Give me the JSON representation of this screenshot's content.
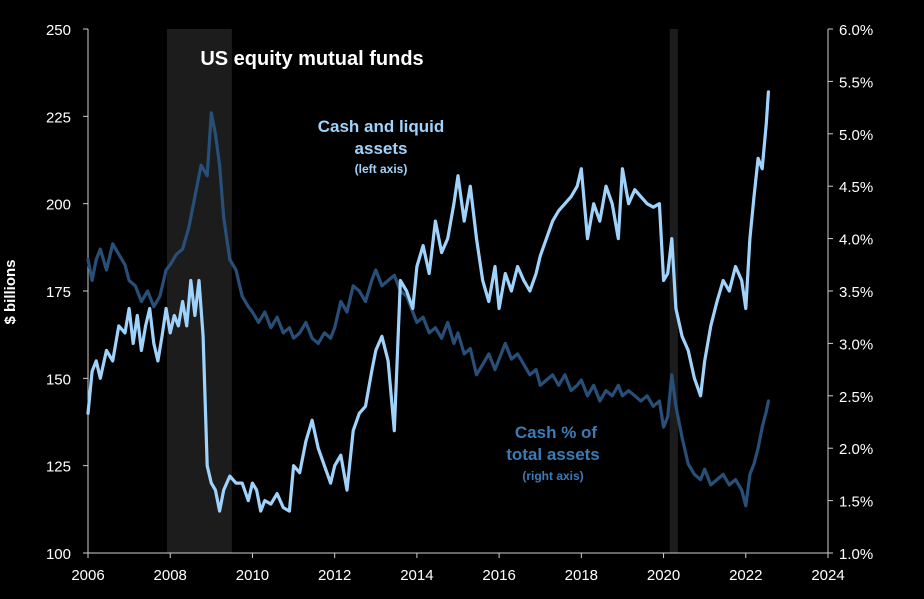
{
  "chart_data": {
    "type": "line",
    "title": "US equity mutual funds",
    "ylabel": "$ billions",
    "y2label": "",
    "xlim": [
      2006,
      2024
    ],
    "ylim": [
      100,
      250
    ],
    "y2lim": [
      1.0,
      6.0
    ],
    "x_ticks": [
      "2006",
      "2008",
      "2010",
      "2012",
      "2014",
      "2016",
      "2018",
      "2020",
      "2022",
      "2024"
    ],
    "y_ticks": [
      "100",
      "125",
      "150",
      "175",
      "200",
      "225",
      "250"
    ],
    "y2_ticks": [
      "1.0%",
      "1.5%",
      "2.0%",
      "2.5%",
      "3.0%",
      "3.5%",
      "4.0%",
      "4.5%",
      "5.0%",
      "5.5%",
      "6.0%"
    ],
    "recessions": [
      {
        "start": 2007.92,
        "end": 2009.5
      },
      {
        "start": 2020.15,
        "end": 2020.35
      }
    ],
    "annotations": {
      "cash_liquid": {
        "lines": [
          "Cash and liquid",
          "assets"
        ],
        "sub": "(left axis)",
        "color": "#9fd3fb"
      },
      "cash_pct": {
        "lines": [
          "Cash % of",
          "total assets"
        ],
        "sub": "(right axis)",
        "color": "#3b7bb8"
      }
    },
    "series": [
      {
        "name": "Cash and liquid assets",
        "axis": "left",
        "color": "#9fd3fb",
        "x": [
          2006.0,
          2006.1,
          2006.2,
          2006.3,
          2006.45,
          2006.6,
          2006.75,
          2006.9,
          2007.0,
          2007.1,
          2007.2,
          2007.3,
          2007.4,
          2007.5,
          2007.6,
          2007.7,
          2007.8,
          2007.9,
          2008.0,
          2008.1,
          2008.2,
          2008.3,
          2008.4,
          2008.5,
          2008.6,
          2008.7,
          2008.8,
          2008.9,
          2009.0,
          2009.1,
          2009.2,
          2009.3,
          2009.45,
          2009.6,
          2009.75,
          2009.9,
          2010.0,
          2010.1,
          2010.2,
          2010.3,
          2010.45,
          2010.6,
          2010.75,
          2010.9,
          2011.0,
          2011.15,
          2011.3,
          2011.45,
          2011.6,
          2011.75,
          2011.9,
          2012.0,
          2012.15,
          2012.3,
          2012.45,
          2012.6,
          2012.75,
          2012.9,
          2013.0,
          2013.15,
          2013.3,
          2013.45,
          2013.6,
          2013.75,
          2013.9,
          2014.0,
          2014.15,
          2014.3,
          2014.45,
          2014.6,
          2014.75,
          2014.9,
          2015.0,
          2015.15,
          2015.3,
          2015.45,
          2015.6,
          2015.75,
          2015.9,
          2016.0,
          2016.15,
          2016.3,
          2016.45,
          2016.6,
          2016.75,
          2016.9,
          2017.0,
          2017.15,
          2017.3,
          2017.45,
          2017.6,
          2017.75,
          2017.9,
          2018.0,
          2018.15,
          2018.3,
          2018.45,
          2018.6,
          2018.75,
          2018.9,
          2019.0,
          2019.15,
          2019.3,
          2019.45,
          2019.6,
          2019.75,
          2019.9,
          2020.0,
          2020.1,
          2020.2,
          2020.3,
          2020.45,
          2020.6,
          2020.75,
          2020.9,
          2021.0,
          2021.15,
          2021.3,
          2021.45,
          2021.6,
          2021.75,
          2021.9,
          2022.0,
          2022.1,
          2022.2,
          2022.3,
          2022.4,
          2022.5,
          2022.55
        ],
        "values": [
          140,
          152,
          155,
          150,
          158,
          155,
          165,
          163,
          170,
          160,
          168,
          158,
          165,
          170,
          160,
          155,
          162,
          170,
          163,
          168,
          165,
          172,
          165,
          178,
          168,
          178,
          162,
          125,
          120,
          118,
          112,
          118,
          122,
          120,
          120,
          115,
          120,
          118,
          112,
          115,
          114,
          117,
          113,
          112,
          125,
          123,
          132,
          138,
          130,
          125,
          120,
          125,
          128,
          118,
          135,
          140,
          142,
          152,
          158,
          162,
          155,
          135,
          178,
          175,
          170,
          182,
          188,
          180,
          195,
          186,
          190,
          200,
          208,
          195,
          205,
          190,
          178,
          172,
          182,
          170,
          180,
          175,
          182,
          178,
          175,
          180,
          185,
          190,
          195,
          198,
          200,
          202,
          205,
          210,
          190,
          200,
          195,
          205,
          200,
          190,
          210,
          200,
          204,
          202,
          200,
          199,
          200,
          178,
          180,
          190,
          170,
          162,
          158,
          150,
          145,
          155,
          165,
          172,
          178,
          175,
          182,
          178,
          170,
          190,
          202,
          213,
          210,
          223,
          232
        ]
      },
      {
        "name": "Cash % of total assets",
        "axis": "right",
        "color": "#274f78",
        "x": [
          2006.0,
          2006.1,
          2006.2,
          2006.3,
          2006.45,
          2006.6,
          2006.75,
          2006.9,
          2007.0,
          2007.15,
          2007.3,
          2007.45,
          2007.6,
          2007.75,
          2007.9,
          2008.0,
          2008.15,
          2008.3,
          2008.45,
          2008.6,
          2008.75,
          2008.9,
          2009.0,
          2009.1,
          2009.2,
          2009.3,
          2009.45,
          2009.6,
          2009.75,
          2009.9,
          2010.0,
          2010.15,
          2010.3,
          2010.45,
          2010.6,
          2010.75,
          2010.9,
          2011.0,
          2011.15,
          2011.3,
          2011.45,
          2011.6,
          2011.75,
          2011.9,
          2012.0,
          2012.15,
          2012.3,
          2012.45,
          2012.6,
          2012.75,
          2012.9,
          2013.0,
          2013.15,
          2013.3,
          2013.45,
          2013.6,
          2013.75,
          2013.9,
          2014.0,
          2014.15,
          2014.3,
          2014.45,
          2014.6,
          2014.75,
          2014.9,
          2015.0,
          2015.15,
          2015.3,
          2015.45,
          2015.6,
          2015.75,
          2015.9,
          2016.0,
          2016.15,
          2016.3,
          2016.45,
          2016.6,
          2016.75,
          2016.9,
          2017.0,
          2017.15,
          2017.3,
          2017.45,
          2017.6,
          2017.75,
          2017.9,
          2018.0,
          2018.15,
          2018.3,
          2018.45,
          2018.6,
          2018.75,
          2018.9,
          2019.0,
          2019.15,
          2019.3,
          2019.45,
          2019.6,
          2019.75,
          2019.9,
          2020.0,
          2020.1,
          2020.2,
          2020.3,
          2020.45,
          2020.6,
          2020.75,
          2020.9,
          2021.0,
          2021.15,
          2021.3,
          2021.45,
          2021.6,
          2021.75,
          2021.9,
          2022.0,
          2022.1,
          2022.2,
          2022.3,
          2022.4,
          2022.5,
          2022.55
        ],
        "values": [
          3.8,
          3.6,
          3.8,
          3.9,
          3.7,
          3.95,
          3.85,
          3.75,
          3.6,
          3.55,
          3.4,
          3.5,
          3.35,
          3.45,
          3.7,
          3.75,
          3.85,
          3.9,
          4.1,
          4.4,
          4.7,
          4.6,
          5.2,
          5.0,
          4.7,
          4.2,
          3.8,
          3.7,
          3.45,
          3.35,
          3.3,
          3.2,
          3.3,
          3.15,
          3.25,
          3.1,
          3.15,
          3.05,
          3.1,
          3.2,
          3.05,
          3.0,
          3.1,
          3.05,
          3.15,
          3.4,
          3.3,
          3.55,
          3.5,
          3.4,
          3.6,
          3.7,
          3.55,
          3.6,
          3.65,
          3.5,
          3.45,
          3.3,
          3.2,
          3.25,
          3.1,
          3.15,
          3.05,
          3.2,
          3.0,
          3.1,
          2.9,
          2.95,
          2.7,
          2.8,
          2.9,
          2.75,
          2.85,
          3.0,
          2.85,
          2.9,
          2.8,
          2.7,
          2.75,
          2.6,
          2.65,
          2.7,
          2.6,
          2.7,
          2.55,
          2.6,
          2.65,
          2.5,
          2.6,
          2.45,
          2.55,
          2.5,
          2.6,
          2.5,
          2.55,
          2.5,
          2.45,
          2.5,
          2.4,
          2.45,
          2.2,
          2.3,
          2.7,
          2.4,
          2.1,
          1.85,
          1.75,
          1.7,
          1.8,
          1.65,
          1.7,
          1.75,
          1.65,
          1.7,
          1.6,
          1.45,
          1.75,
          1.85,
          2.0,
          2.2,
          2.35,
          2.45
        ]
      }
    ]
  }
}
